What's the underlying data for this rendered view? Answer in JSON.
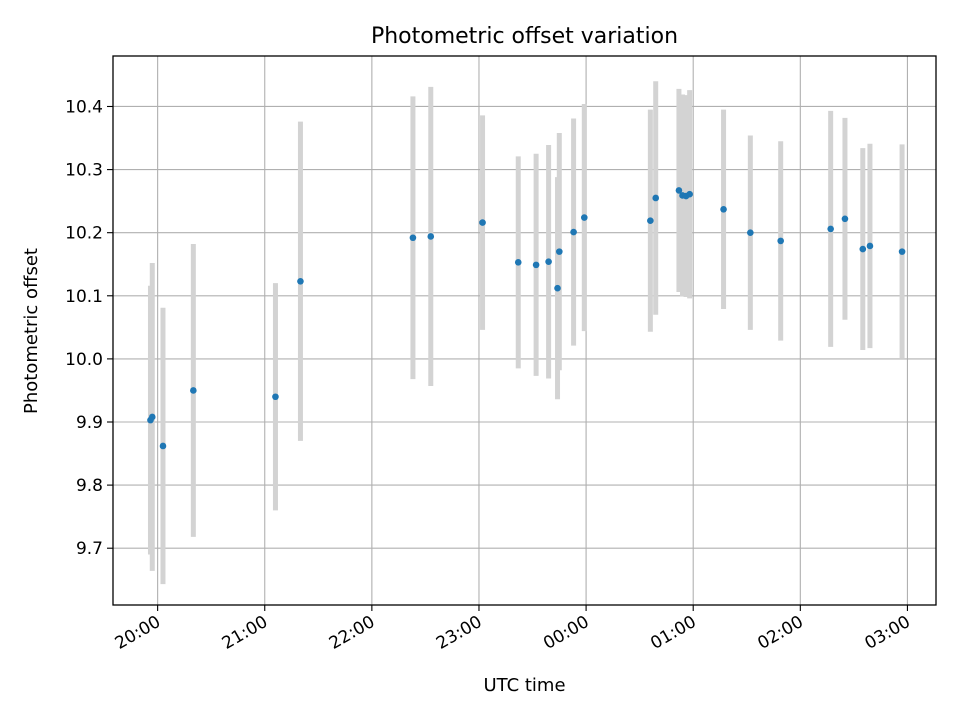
{
  "chart_data": {
    "type": "scatter",
    "title": "Photometric offset variation",
    "xlabel": "UTC time",
    "ylabel": "Photometric offset",
    "xlim": [
      "19:35",
      "03:16"
    ],
    "ylim": [
      9.61,
      10.48
    ],
    "x_ticks": [
      "20:00",
      "21:00",
      "22:00",
      "23:00",
      "00:00",
      "01:00",
      "02:00",
      "03:00"
    ],
    "y_ticks": [
      9.7,
      9.8,
      9.9,
      10.0,
      10.1,
      10.2,
      10.3,
      10.4
    ],
    "grid": true,
    "legend": "none",
    "points": [
      {
        "t": "19:56",
        "y": 9.903,
        "err": 0.213
      },
      {
        "t": "19:57",
        "y": 9.908,
        "err": 0.244
      },
      {
        "t": "20:03",
        "y": 9.862,
        "err": 0.219
      },
      {
        "t": "20:20",
        "y": 9.95,
        "err": 0.232
      },
      {
        "t": "21:06",
        "y": 9.94,
        "err": 0.18
      },
      {
        "t": "21:20",
        "y": 10.123,
        "err": 0.253
      },
      {
        "t": "22:23",
        "y": 10.192,
        "err": 0.224
      },
      {
        "t": "22:33",
        "y": 10.194,
        "err": 0.237
      },
      {
        "t": "23:02",
        "y": 10.216,
        "err": 0.17
      },
      {
        "t": "23:22",
        "y": 10.153,
        "err": 0.168
      },
      {
        "t": "23:32",
        "y": 10.149,
        "err": 0.176
      },
      {
        "t": "23:39",
        "y": 10.154,
        "err": 0.185
      },
      {
        "t": "23:44",
        "y": 10.112,
        "err": 0.176
      },
      {
        "t": "23:45",
        "y": 10.17,
        "err": 0.188
      },
      {
        "t": "23:53",
        "y": 10.201,
        "err": 0.18
      },
      {
        "t": "23:59",
        "y": 10.224,
        "err": 0.18
      },
      {
        "t": "00:36",
        "y": 10.219,
        "err": 0.176
      },
      {
        "t": "00:39",
        "y": 10.255,
        "err": 0.185
      },
      {
        "t": "00:52",
        "y": 10.267,
        "err": 0.161
      },
      {
        "t": "00:54",
        "y": 10.259,
        "err": 0.16
      },
      {
        "t": "00:56",
        "y": 10.258,
        "err": 0.16
      },
      {
        "t": "00:58",
        "y": 10.261,
        "err": 0.165
      },
      {
        "t": "01:17",
        "y": 10.237,
        "err": 0.158
      },
      {
        "t": "01:32",
        "y": 10.2,
        "err": 0.154
      },
      {
        "t": "01:49",
        "y": 10.187,
        "err": 0.158
      },
      {
        "t": "02:17",
        "y": 10.206,
        "err": 0.187
      },
      {
        "t": "02:25",
        "y": 10.222,
        "err": 0.16
      },
      {
        "t": "02:35",
        "y": 10.174,
        "err": 0.16
      },
      {
        "t": "02:39",
        "y": 10.179,
        "err": 0.162
      },
      {
        "t": "02:57",
        "y": 10.17,
        "err": 0.17
      }
    ],
    "colors": {
      "marker": "#1f77b4",
      "errorbar": "#d3d3d3",
      "grid": "#b0b0b0"
    }
  }
}
